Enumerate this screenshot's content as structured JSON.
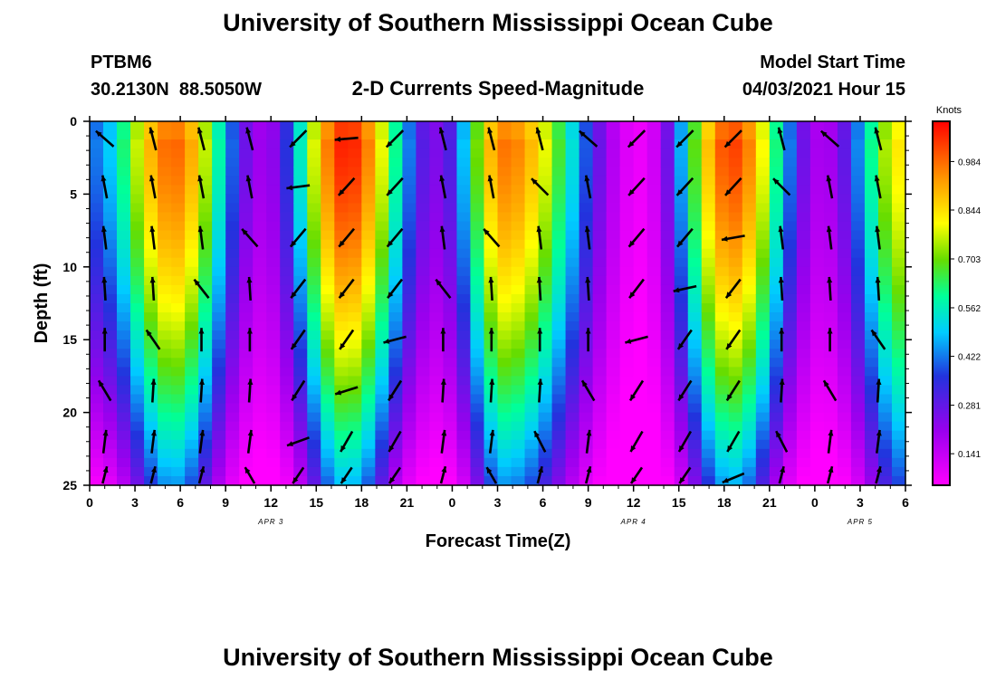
{
  "header": {
    "title": "University of Southern Mississippi Ocean Cube",
    "station_id": "PTBM6",
    "station_coords": "30.2130N  88.5050W",
    "chart_title": "2-D Currents Speed-Magnitude",
    "model_start_label": "Model Start Time",
    "model_start_value": "04/03/2021 Hour 15"
  },
  "footer": {
    "title": "University of Southern Mississippi Ocean Cube"
  },
  "chart_data": {
    "type": "heatmap",
    "title": "2-D Currents Speed-Magnitude",
    "xlabel": "Forecast Time(Z)",
    "ylabel": "Depth (ft)",
    "x_ticks": [
      "0",
      "3",
      "6",
      "9",
      "12",
      "15",
      "18",
      "21",
      "0",
      "3",
      "6",
      "9",
      "12",
      "15",
      "18",
      "21",
      "0",
      "3",
      "6"
    ],
    "day_labels": [
      {
        "label": "APR 3",
        "tick_index": 4
      },
      {
        "label": "APR 4",
        "tick_index": 12
      },
      {
        "label": "APR 5",
        "tick_index": 17
      }
    ],
    "y_ticks": [
      0,
      5,
      10,
      15,
      20,
      25
    ],
    "ylim": [
      0,
      25
    ],
    "hours_range": [
      0,
      54
    ],
    "colorbar": {
      "unit_label": "Knots",
      "tick_labels": [
        "0.984",
        "0.844",
        "0.703",
        "0.562",
        "0.422",
        "0.281",
        "0.141"
      ],
      "tick_values": [
        0.984,
        0.844,
        0.703,
        0.562,
        0.422,
        0.281,
        0.141
      ],
      "vmin": 0.05,
      "vmax": 1.1
    },
    "speed_peaks_hours": [
      5.5,
      17.0,
      27.5,
      42.5,
      54.0
    ],
    "speed_troughs_hours": [
      0.0,
      11.5,
      23.0,
      36.5,
      48.5
    ],
    "peak_speed_knots": [
      1.0,
      1.08,
      0.98,
      1.04,
      0.85
    ],
    "trough_speed_knots": [
      0.42,
      0.2,
      0.25,
      0.08,
      0.18
    ]
  },
  "colors": {
    "arrow": "#000000",
    "text": "#000000",
    "background": "#ffffff"
  }
}
